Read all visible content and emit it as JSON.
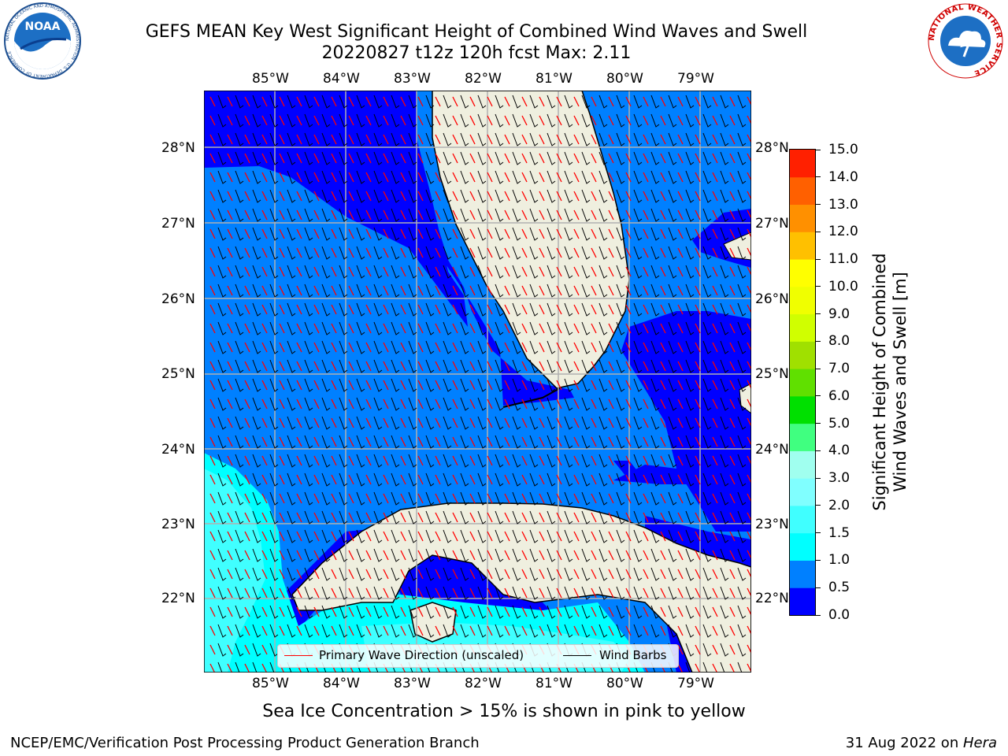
{
  "header": {
    "title_line1": "GEFS MEAN Key West Significant Height of Combined Wind Waves and Swell",
    "title_line2": "20220827 t12z 120h fcst   Max: 2.11"
  },
  "logos": {
    "left_name": "NOAA",
    "left_ring_text": "NATIONAL OCEANIC AND ATMOSPHERIC ADMINISTRATION · U.S. DEPARTMENT OF COMMERCE",
    "right_ring_text": "NATIONAL WEATHER SERVICE"
  },
  "axes": {
    "lon_labels": [
      "85°W",
      "84°W",
      "83°W",
      "82°W",
      "81°W",
      "80°W",
      "79°W"
    ],
    "lat_labels": [
      "28°N",
      "27°N",
      "26°N",
      "25°N",
      "24°N",
      "23°N",
      "22°N"
    ]
  },
  "colorbar": {
    "label_line1": "Significant Height of Combined",
    "label_line2": "Wind Waves and Swell [m]",
    "ticks": [
      "0.0",
      "0.5",
      "1.0",
      "1.5",
      "2.0",
      "3.0",
      "4.0",
      "5.0",
      "6.0",
      "7.0",
      "8.0",
      "9.0",
      "10.0",
      "11.0",
      "12.0",
      "13.0",
      "14.0",
      "15.0"
    ],
    "colors": [
      "#0000ff",
      "#0080ff",
      "#00ffff",
      "#40ffff",
      "#80ffff",
      "#a0ffef",
      "#40ff80",
      "#00e000",
      "#60e000",
      "#a0e000",
      "#d0ff00",
      "#f0ff00",
      "#ffff00",
      "#ffc000",
      "#ff9000",
      "#ff6000",
      "#ff2000"
    ]
  },
  "legend": {
    "wave_direction": "Primary Wave Direction (unscaled)",
    "wind_barbs": "Wind Barbs",
    "wave_color": "#ff0000",
    "barb_color": "#000000"
  },
  "map_colors": {
    "band_0_05": "#0000ff",
    "band_05_10": "#0080ff",
    "band_10_15": "#00ffff",
    "band_15_20": "#40ffff",
    "land": "#efefdf",
    "grid": "#b0b0b0"
  },
  "notes": {
    "sea_ice": "Sea Ice Concentration > 15% is shown in pink to yellow"
  },
  "footer": {
    "left": "NCEP/EMC/Verification Post Processing Product Generation Branch",
    "right_date": "31 Aug 2022 on ",
    "right_host": "Hera"
  }
}
